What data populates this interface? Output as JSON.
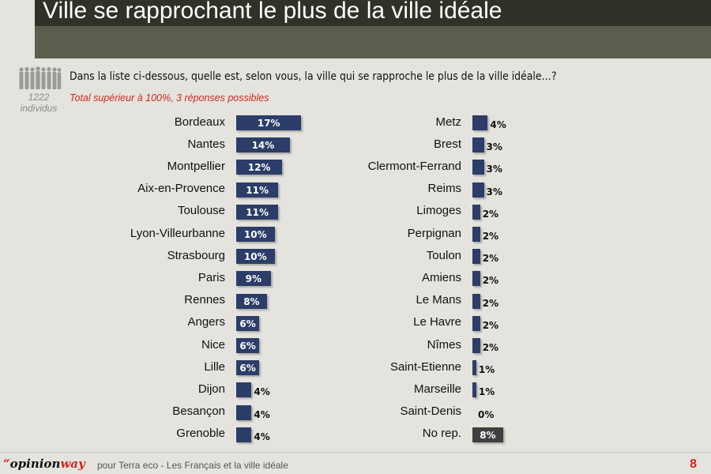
{
  "header": {
    "title": "Ville se rapprochant le plus de la ville idéale"
  },
  "respondents": {
    "count": "1222",
    "unit": "individus"
  },
  "question": "Dans la liste ci-dessous, quelle est, selon vous, la ville qui se rapproche le plus de la ville idéale…?",
  "note": "Total supérieur à 100%, 3 réponses possibles",
  "colors": {
    "bar": "#2b3d68",
    "bar_no_answer": "#3f3f3f",
    "accent": "#d2261f",
    "header": "#2f3227"
  },
  "chart_data": {
    "type": "bar",
    "orientation": "horizontal",
    "unit": "%",
    "left_column": {
      "categories": [
        "Bordeaux",
        "Nantes",
        "Montpellier",
        "Aix-en-Provence",
        "Toulouse",
        "Lyon-Villeurbanne",
        "Strasbourg",
        "Paris",
        "Rennes",
        "Angers",
        "Nice",
        "Lille",
        "Dijon",
        "Besançon",
        "Grenoble"
      ],
      "values": [
        17,
        14,
        12,
        11,
        11,
        10,
        10,
        9,
        8,
        6,
        6,
        6,
        4,
        4,
        4
      ],
      "labels": [
        "17%",
        "14%",
        "12%",
        "11%",
        "11%",
        "10%",
        "10%",
        "9%",
        "8%",
        "6%",
        "6%",
        "6%",
        "4%",
        "4%",
        "4%"
      ]
    },
    "right_column": {
      "categories": [
        "Metz",
        "Brest",
        "Clermont-Ferrand",
        "Reims",
        "Limoges",
        "Perpignan",
        "Toulon",
        "Amiens",
        "Le Mans",
        "Le Havre",
        "Nîmes",
        "Saint-Etienne",
        "Marseille",
        "Saint-Denis",
        "No rep."
      ],
      "values": [
        4,
        3,
        3,
        3,
        2,
        2,
        2,
        2,
        2,
        2,
        2,
        1,
        1,
        0,
        8
      ],
      "labels": [
        "4%",
        "3%",
        "3%",
        "3%",
        "2%",
        "2%",
        "2%",
        "2%",
        "2%",
        "2%",
        "2%",
        "1%",
        "1%",
        "0%",
        "8%"
      ]
    }
  },
  "footer": {
    "logo_quote": "“",
    "logo_opinion": "opinion",
    "logo_way": "way",
    "text": "pour Terra eco - Les Français et la ville idéale",
    "page": "8"
  }
}
